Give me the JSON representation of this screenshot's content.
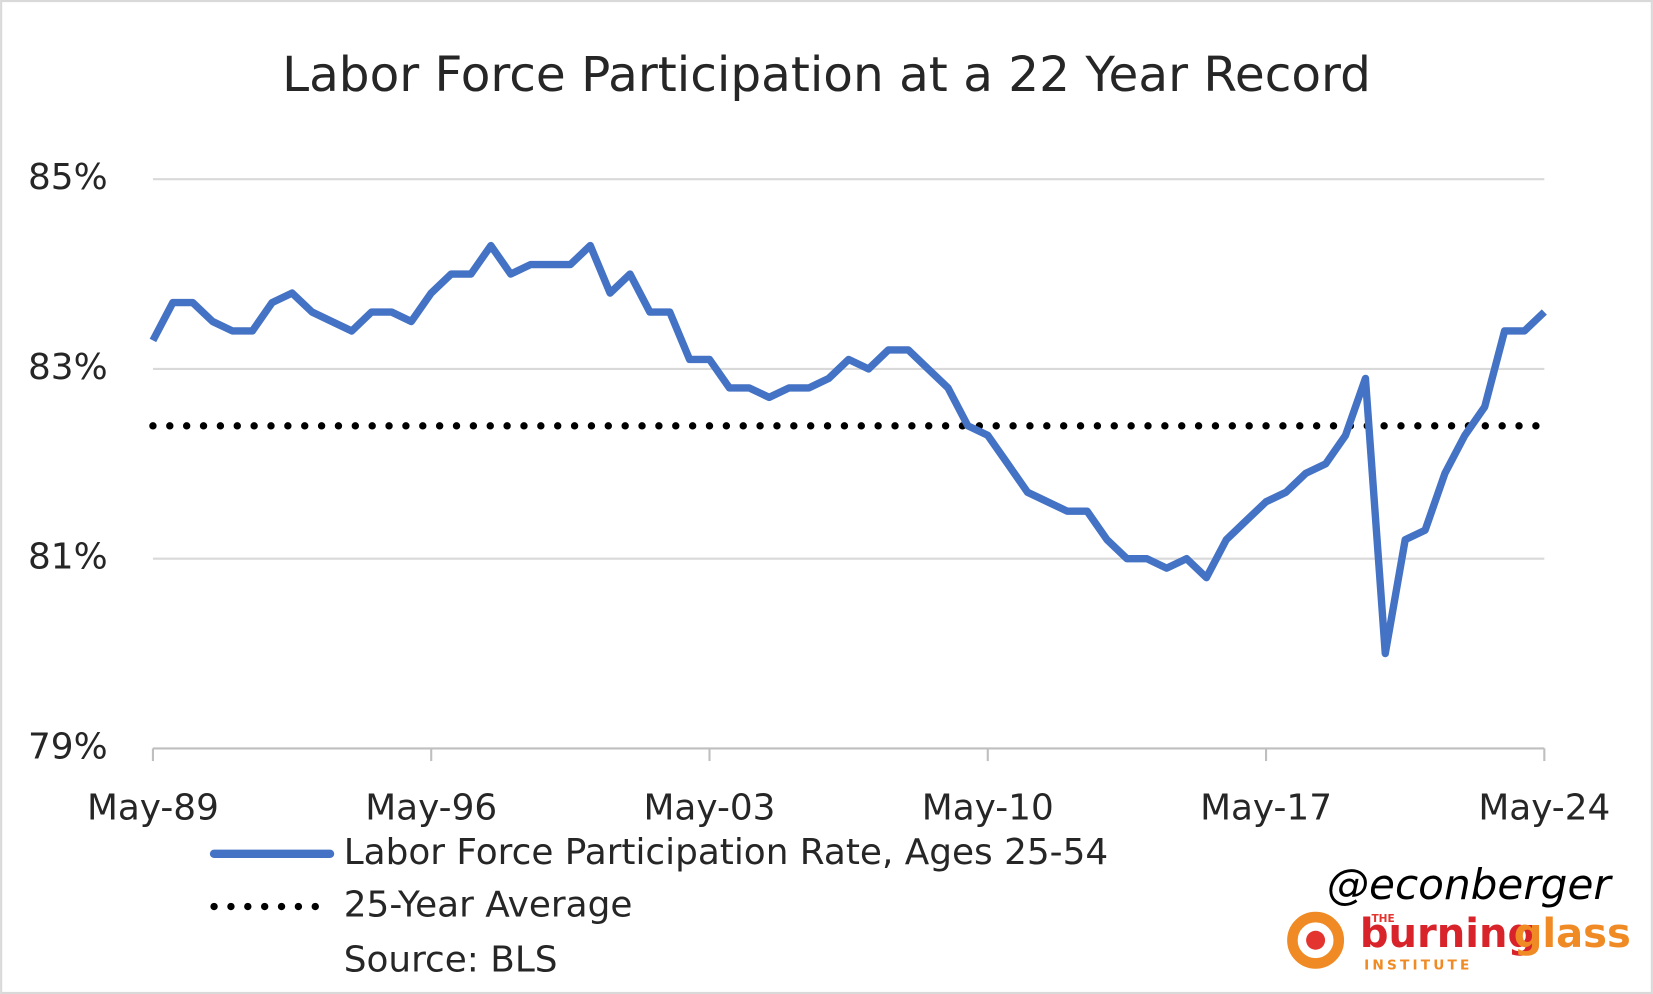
{
  "chart_data": {
    "type": "line",
    "title": "Labor Force Participation at a 22 Year Record",
    "categories": [
      "May-89",
      null,
      null,
      null,
      null,
      null,
      null,
      null,
      null,
      null,
      null,
      null,
      null,
      null,
      "May-96",
      null,
      null,
      null,
      null,
      null,
      null,
      null,
      null,
      null,
      null,
      null,
      null,
      null,
      "May-03",
      null,
      null,
      null,
      null,
      null,
      null,
      null,
      null,
      null,
      null,
      null,
      null,
      null,
      "May-10",
      null,
      null,
      null,
      null,
      null,
      null,
      null,
      null,
      null,
      null,
      null,
      null,
      null,
      "May-17",
      null,
      null,
      null,
      null,
      null,
      null,
      null,
      null,
      null,
      null,
      null,
      null,
      null,
      "May-24"
    ],
    "series": [
      {
        "name": "Labor Force Participation Rate, Ages 25-54",
        "color": "#4472c4",
        "values": [
          83.3,
          83.7,
          83.7,
          83.5,
          83.4,
          83.4,
          83.7,
          83.8,
          83.6,
          83.5,
          83.4,
          83.6,
          83.6,
          83.5,
          83.8,
          84.0,
          84.0,
          84.3,
          84.0,
          84.1,
          84.1,
          84.1,
          84.3,
          83.8,
          84.0,
          83.6,
          83.6,
          83.1,
          83.1,
          82.8,
          82.8,
          82.7,
          82.8,
          82.8,
          82.9,
          83.1,
          83.0,
          83.2,
          83.2,
          83.0,
          82.8,
          82.4,
          82.3,
          82.0,
          81.7,
          81.6,
          81.5,
          81.5,
          81.2,
          81.0,
          81.0,
          80.9,
          81.0,
          80.8,
          81.2,
          81.4,
          81.6,
          81.7,
          81.9,
          82.0,
          82.3,
          82.9,
          80.0,
          81.2,
          81.3,
          81.9,
          82.3,
          82.6,
          83.4,
          83.4,
          83.6
        ]
      }
    ],
    "reference_lines": [
      {
        "name": "25-Year Average",
        "value": 82.4,
        "color": "#000000"
      }
    ],
    "ylim": [
      79,
      85
    ],
    "yticks": [
      {
        "value": 79,
        "label": "79%"
      },
      {
        "value": 81,
        "label": "81%"
      },
      {
        "value": 83,
        "label": "83%"
      },
      {
        "value": 85,
        "label": "85%"
      }
    ],
    "grid": true,
    "source": "Source: BLS",
    "credit": "@econberger",
    "logo": {
      "small": "THE",
      "name_1": "burning",
      "name_2": "glass",
      "sub": "INSTITUTE"
    }
  }
}
